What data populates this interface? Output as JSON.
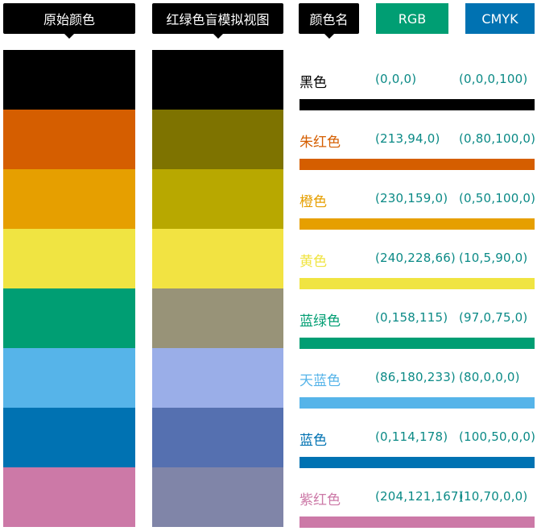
{
  "headers": {
    "original": "原始颜色",
    "simulated": "红绿色盲模拟视图",
    "name": "颜色名",
    "rgb": "RGB",
    "cmyk": "CMYK"
  },
  "colors": [
    {
      "name": "黑色",
      "rgb_text": "(0,0,0)",
      "cmyk_text": "(0,0,0,100)",
      "hex": "#000000",
      "sim_hex": "#000000",
      "name_color": "#000000"
    },
    {
      "name": "朱红色",
      "rgb_text": "(213,94,0)",
      "cmyk_text": "(0,80,100,0)",
      "hex": "#d55e00",
      "sim_hex": "#7e7300",
      "name_color": "#d55e00"
    },
    {
      "name": "橙色",
      "rgb_text": "(230,159,0)",
      "cmyk_text": "(0,50,100,0)",
      "hex": "#e69f00",
      "sim_hex": "#b8a800",
      "name_color": "#e69f00"
    },
    {
      "name": "黄色",
      "rgb_text": "(240,228,66)",
      "cmyk_text": "(10,5,90,0)",
      "hex": "#f0e442",
      "sim_hex": "#f2e342",
      "name_color": "#f0e442"
    },
    {
      "name": "蓝绿色",
      "rgb_text": "(0,158,115)",
      "cmyk_text": "(97,0,75,0)",
      "hex": "#009e73",
      "sim_hex": "#989378",
      "name_color": "#009e73"
    },
    {
      "name": "天蓝色",
      "rgb_text": "(86,180,233)",
      "cmyk_text": "(80,0,0,0)",
      "hex": "#56b4e9",
      "sim_hex": "#9aaee8",
      "name_color": "#56b4e9"
    },
    {
      "name": "蓝色",
      "rgb_text": "(0,114,178)",
      "cmyk_text": "(100,50,0,0)",
      "hex": "#0072b2",
      "sim_hex": "#5570b0",
      "name_color": "#0072b2"
    },
    {
      "name": "紫红色",
      "rgb_text": "(204,121,167)",
      "cmyk_text": "(10,70,0,0)",
      "hex": "#cc79a7",
      "sim_hex": "#8085a8",
      "name_color": "#cc79a7"
    }
  ]
}
